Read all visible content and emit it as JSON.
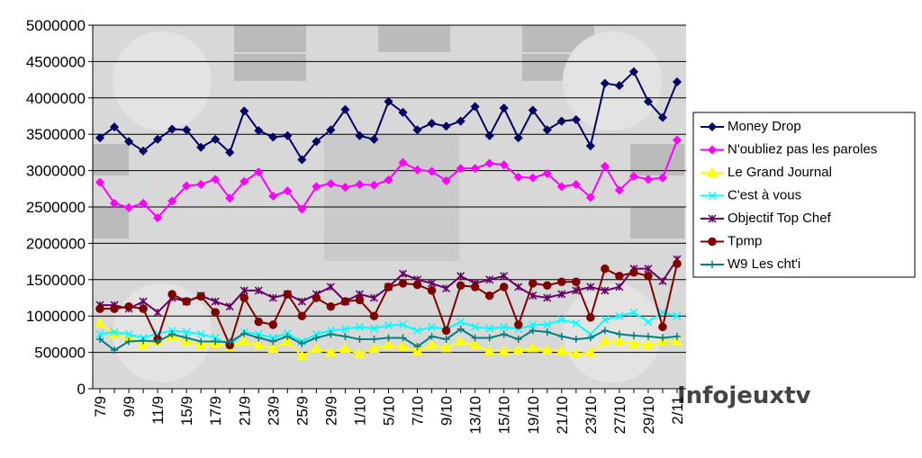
{
  "chart_data": {
    "type": "line",
    "categories": [
      "7/9",
      null,
      "9/9",
      null,
      "11/9",
      null,
      "15/9",
      null,
      "17/9",
      null,
      "21/9",
      null,
      "23/9",
      null,
      "25/9",
      null,
      "29/9",
      null,
      "1/10",
      null,
      "5/10",
      null,
      "7/10",
      null,
      "9/10",
      null,
      "13/10",
      null,
      "15/10",
      null,
      "19/10",
      null,
      "21/10",
      null,
      "23/10",
      null,
      "27/10",
      null,
      "29/10",
      null,
      "2/11"
    ],
    "ylim": [
      0,
      5000000
    ],
    "yticks": [
      0,
      500000,
      1000000,
      1500000,
      2000000,
      2500000,
      3000000,
      3500000,
      4000000,
      4500000,
      5000000
    ],
    "grid": true,
    "legend": "right",
    "watermark": "Infojeuxtv",
    "series": [
      {
        "name": "Money Drop",
        "color": "#000066",
        "marker": "diamond",
        "values": [
          3450000,
          3600000,
          3400000,
          3270000,
          3430000,
          3570000,
          3560000,
          3320000,
          3430000,
          3250000,
          3820000,
          3550000,
          3460000,
          3480000,
          3150000,
          3400000,
          3560000,
          3840000,
          3480000,
          3430000,
          3950000,
          3800000,
          3560000,
          3650000,
          3610000,
          3680000,
          3880000,
          3480000,
          3860000,
          3450000,
          3830000,
          3560000,
          3680000,
          3700000,
          3340000,
          4200000,
          4170000,
          4360000,
          3950000,
          3730000,
          4220000
        ]
      },
      {
        "name": "N'oubliez pas les paroles",
        "color": "#ff00ff",
        "marker": "diamond",
        "values": [
          2840000,
          2550000,
          2490000,
          2550000,
          2350000,
          2580000,
          2790000,
          2810000,
          2880000,
          2620000,
          2850000,
          2980000,
          2650000,
          2720000,
          2470000,
          2780000,
          2820000,
          2770000,
          2810000,
          2800000,
          2870000,
          3110000,
          3010000,
          2990000,
          2860000,
          3030000,
          3030000,
          3100000,
          3080000,
          2910000,
          2900000,
          2960000,
          2780000,
          2810000,
          2630000,
          3060000,
          2730000,
          2920000,
          2880000,
          2900000,
          3420000
        ]
      },
      {
        "name": "Le Grand Journal",
        "color": "#ffff00",
        "marker": "triangle",
        "values": [
          900000,
          750000,
          700000,
          600000,
          650000,
          720000,
          650000,
          600000,
          620000,
          580000,
          650000,
          600000,
          550000,
          650000,
          450000,
          550000,
          500000,
          550000,
          480000,
          550000,
          600000,
          580000,
          520000,
          600000,
          560000,
          650000,
          600000,
          520000,
          520000,
          530000,
          560000,
          530000,
          520000,
          480000,
          500000,
          650000,
          650000,
          620000,
          600000,
          650000,
          650000
        ]
      },
      {
        "name": "C'est à vous",
        "color": "#00ffff",
        "marker": "x",
        "values": [
          750000,
          780000,
          750000,
          700000,
          760000,
          800000,
          780000,
          750000,
          700000,
          600000,
          780000,
          750000,
          700000,
          760000,
          650000,
          750000,
          800000,
          820000,
          850000,
          830000,
          870000,
          880000,
          800000,
          850000,
          820000,
          920000,
          850000,
          830000,
          850000,
          820000,
          880000,
          880000,
          950000,
          900000,
          750000,
          950000,
          1000000,
          1050000,
          920000,
          1050000,
          1000000
        ]
      },
      {
        "name": "Objectif Top Chef",
        "color": "#660066",
        "marker": "star",
        "values": [
          1150000,
          1150000,
          1100000,
          1200000,
          1050000,
          1250000,
          1200000,
          1280000,
          1200000,
          1130000,
          1350000,
          1350000,
          1250000,
          1300000,
          1200000,
          1300000,
          1400000,
          1200000,
          1300000,
          1250000,
          1400000,
          1580000,
          1500000,
          1450000,
          1380000,
          1550000,
          1450000,
          1500000,
          1550000,
          1400000,
          1280000,
          1250000,
          1300000,
          1350000,
          1400000,
          1350000,
          1400000,
          1650000,
          1650000,
          1480000,
          1780000
        ]
      },
      {
        "name": "Tpmp",
        "color": "#800000",
        "marker": "circle",
        "values": [
          1100000,
          1100000,
          1130000,
          1100000,
          680000,
          1300000,
          1200000,
          1270000,
          1050000,
          600000,
          1250000,
          920000,
          880000,
          1300000,
          1000000,
          1250000,
          1130000,
          1200000,
          1220000,
          1000000,
          1400000,
          1450000,
          1430000,
          1350000,
          800000,
          1420000,
          1400000,
          1280000,
          1400000,
          880000,
          1450000,
          1420000,
          1470000,
          1470000,
          980000,
          1650000,
          1550000,
          1600000,
          1550000,
          850000,
          1720000
        ]
      },
      {
        "name": "W9 Les cht'i",
        "color": "#008080",
        "marker": "plus",
        "values": [
          680000,
          530000,
          650000,
          660000,
          650000,
          750000,
          700000,
          650000,
          650000,
          640000,
          760000,
          700000,
          650000,
          720000,
          620000,
          700000,
          750000,
          720000,
          680000,
          680000,
          700000,
          700000,
          580000,
          720000,
          680000,
          820000,
          700000,
          700000,
          750000,
          680000,
          800000,
          780000,
          720000,
          680000,
          700000,
          800000,
          750000,
          730000,
          720000,
          700000,
          720000
        ]
      }
    ]
  }
}
